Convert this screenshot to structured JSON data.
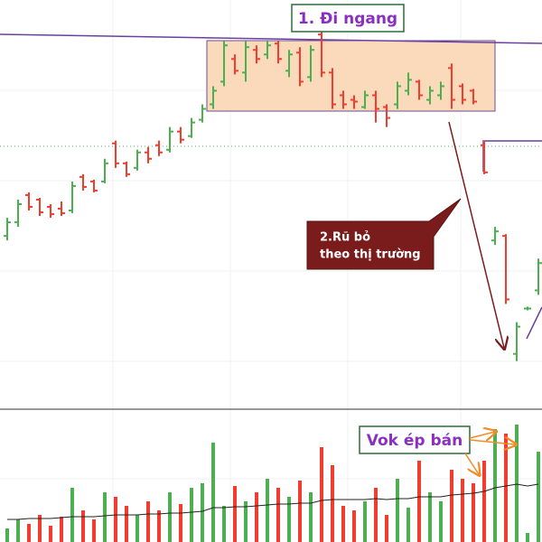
{
  "chart_data": {
    "type": "ohlc",
    "ylim": [
      0,
      450
    ],
    "up_color": "#4caf50",
    "down_color": "#f23c2e",
    "bars": [
      [
        190,
        210,
        185,
        205
      ],
      [
        205,
        230,
        200,
        225
      ],
      [
        235,
        238,
        218,
        222
      ],
      [
        230,
        232,
        212,
        216
      ],
      [
        222,
        225,
        210,
        214
      ],
      [
        220,
        228,
        212,
        215
      ],
      [
        218,
        250,
        215,
        245
      ],
      [
        255,
        258,
        240,
        244
      ],
      [
        250,
        252,
        238,
        240
      ],
      [
        250,
        275,
        248,
        270
      ],
      [
        292,
        295,
        265,
        270
      ],
      [
        270,
        272,
        255,
        258
      ],
      [
        265,
        285,
        262,
        282
      ],
      [
        282,
        288,
        270,
        275
      ],
      [
        290,
        295,
        278,
        282
      ],
      [
        285,
        310,
        282,
        305
      ],
      [
        305,
        310,
        292,
        296
      ],
      [
        300,
        320,
        298,
        315
      ],
      [
        318,
        335,
        315,
        330
      ],
      [
        335,
        355,
        330,
        350
      ],
      [
        360,
        405,
        355,
        400
      ],
      [
        385,
        390,
        368,
        372
      ],
      [
        370,
        405,
        360,
        398
      ],
      [
        395,
        400,
        380,
        385
      ],
      [
        390,
        405,
        385,
        400
      ],
      [
        402,
        405,
        380,
        385
      ],
      [
        372,
        395,
        365,
        390
      ],
      [
        392,
        398,
        355,
        360
      ],
      [
        365,
        400,
        360,
        395
      ],
      [
        412,
        415,
        365,
        370
      ],
      [
        370,
        375,
        330,
        335
      ],
      [
        345,
        350,
        330,
        335
      ],
      [
        340,
        345,
        330,
        338
      ],
      [
        332,
        350,
        330,
        345
      ],
      [
        345,
        350,
        315,
        330
      ],
      [
        332,
        335,
        310,
        320
      ],
      [
        335,
        360,
        330,
        355
      ],
      [
        350,
        370,
        345,
        362
      ],
      [
        360,
        362,
        340,
        345
      ],
      [
        340,
        355,
        335,
        350
      ],
      [
        345,
        360,
        340,
        355
      ],
      [
        375,
        380,
        330,
        340
      ],
      [
        355,
        358,
        335,
        340
      ],
      [
        350,
        352,
        335,
        338
      ],
      [
        290,
        295,
        258,
        260
      ],
      [
        185,
        200,
        180,
        195
      ],
      [
        190,
        192,
        115,
        120
      ],
      [
        60,
        95,
        52,
        90
      ],
      [
        110,
        112,
        108,
        110
      ],
      [
        130,
        165,
        125,
        160
      ]
    ],
    "volume": {
      "ylim": [
        0,
        140
      ],
      "ma_color": "#222",
      "values": [
        15,
        25,
        20,
        30,
        18,
        28,
        60,
        35,
        25,
        55,
        50,
        40,
        30,
        45,
        35,
        55,
        42,
        60,
        65,
        110,
        40,
        62,
        45,
        55,
        70,
        60,
        50,
        68,
        55,
        105,
        85,
        40,
        35,
        45,
        60,
        30,
        70,
        38,
        90,
        55,
        45,
        80,
        70,
        65,
        90,
        125,
        120,
        130,
        10,
        100
      ],
      "ma": [
        25,
        25,
        26,
        26,
        26,
        27,
        28,
        28,
        28,
        29,
        30,
        30,
        30,
        31,
        31,
        32,
        32,
        33,
        34,
        38,
        38,
        39,
        39,
        40,
        41,
        42,
        42,
        43,
        43,
        46,
        47,
        47,
        47,
        47,
        48,
        47,
        48,
        48,
        50,
        50,
        50,
        52,
        53,
        54,
        56,
        60,
        62,
        64,
        62,
        64
      ]
    },
    "annotations": {
      "range_label": "1. Đi ngang",
      "shakeout_label": [
        "2.Rũ bỏ",
        "theo thị trường"
      ],
      "volume_label": "Vok ép bán"
    }
  }
}
